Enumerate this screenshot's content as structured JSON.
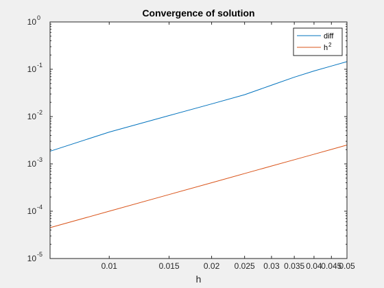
{
  "chart_data": {
    "type": "line",
    "title": "Convergence of solution",
    "xlabel": "h",
    "ylabel": "",
    "xscale": "log",
    "yscale": "log",
    "xlim": [
      0.0067,
      0.05
    ],
    "ylim": [
      1e-05,
      1
    ],
    "grid": false,
    "legend_position": "top-right",
    "x_ticks": [
      0.01,
      0.015,
      0.02,
      0.025,
      0.03,
      0.035,
      0.04,
      0.045,
      0.05
    ],
    "x_tick_labels": [
      "0.01",
      "0.015",
      "0.02",
      "0.025",
      "0.03",
      "0.035",
      "0.04",
      "0.045",
      "0.05"
    ],
    "y_ticks": [
      1e-05,
      0.0001,
      0.001,
      0.01,
      0.1,
      1
    ],
    "y_tick_labels": [
      {
        "base": "10",
        "exp": "-5"
      },
      {
        "base": "10",
        "exp": "-4"
      },
      {
        "base": "10",
        "exp": "-3"
      },
      {
        "base": "10",
        "exp": "-2"
      },
      {
        "base": "10",
        "exp": "-1"
      },
      {
        "base": "10",
        "exp": "0"
      }
    ],
    "series": [
      {
        "name": "diff",
        "legend_base": "diff",
        "legend_exp": "",
        "color": "#0072bd",
        "x": [
          0.0067,
          0.01,
          0.015,
          0.02,
          0.025,
          0.03,
          0.035,
          0.04,
          0.045,
          0.05
        ],
        "y": [
          0.00185,
          0.0047,
          0.0105,
          0.0185,
          0.029,
          0.046,
          0.068,
          0.092,
          0.117,
          0.145
        ]
      },
      {
        "name": "h^2",
        "legend_base": "h",
        "legend_exp": "2",
        "color": "#d95319",
        "x": [
          0.0067,
          0.01,
          0.015,
          0.02,
          0.025,
          0.03,
          0.035,
          0.04,
          0.045,
          0.05
        ],
        "y": [
          4.49e-05,
          0.0001,
          0.000225,
          0.0004,
          0.000625,
          0.0009,
          0.001225,
          0.0016,
          0.002025,
          0.0025
        ]
      }
    ]
  }
}
